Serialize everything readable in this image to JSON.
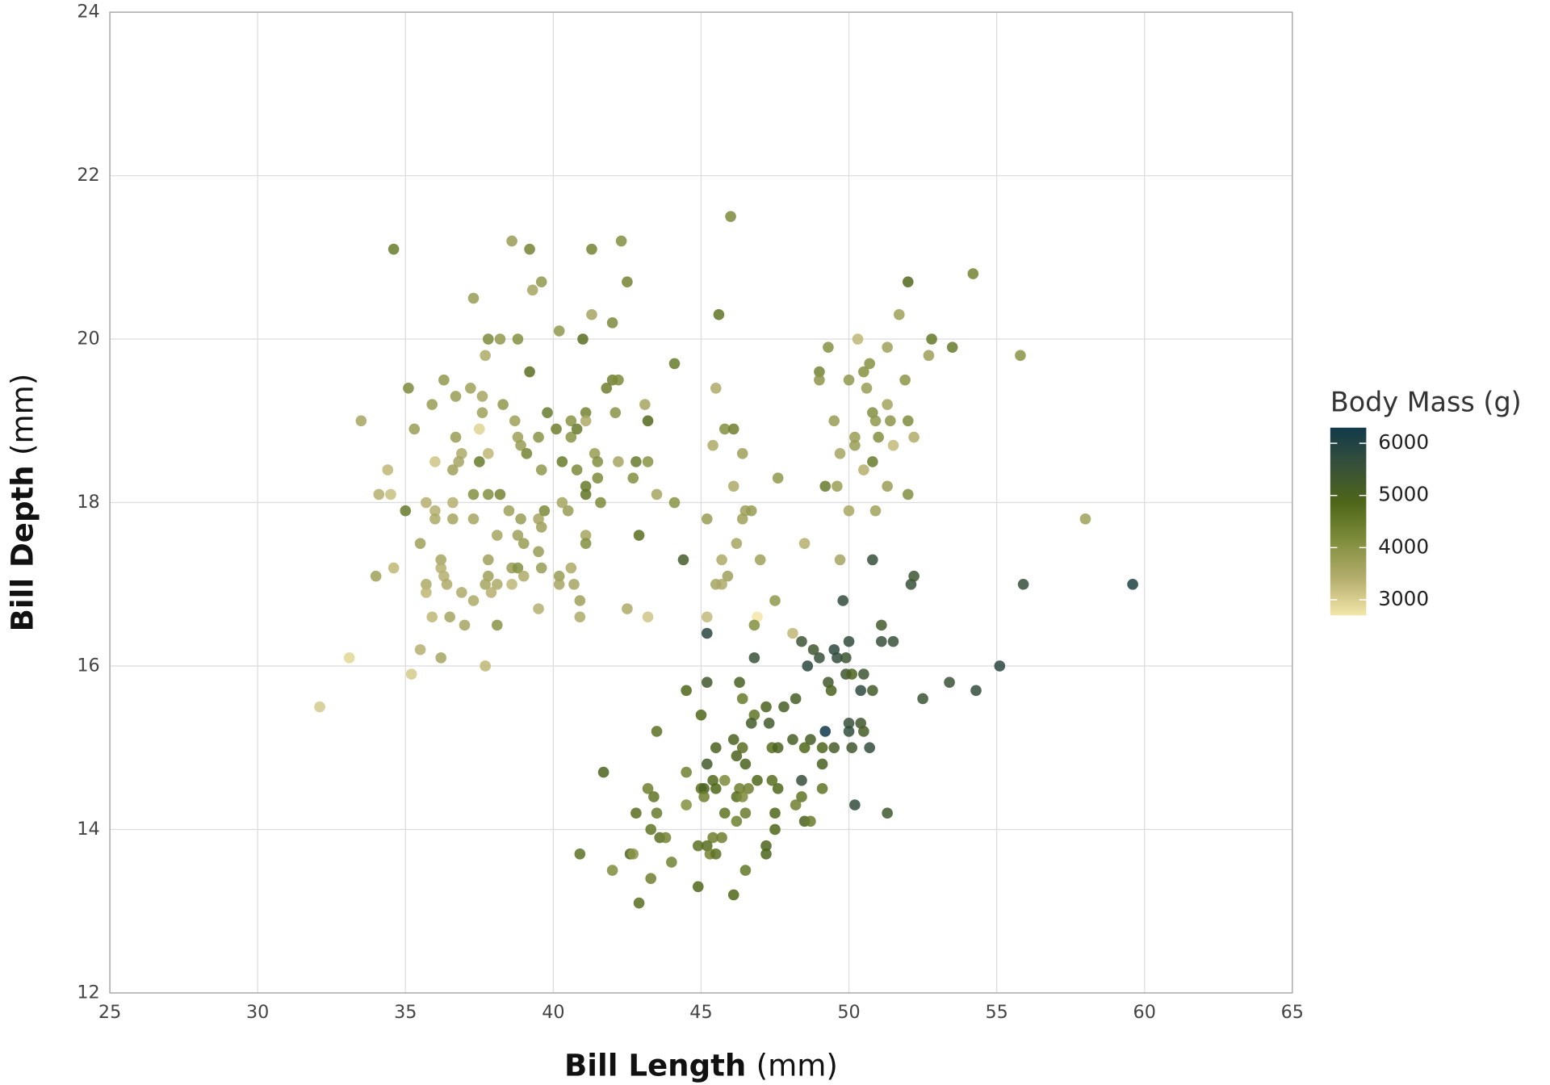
{
  "chart_data": {
    "type": "scatter",
    "xlabel": "Bill Length",
    "xlabel_unit": "(mm)",
    "ylabel": "Bill Depth",
    "ylabel_unit": "(mm)",
    "colorbar_title": "Body Mass (g)",
    "xlim": [
      25,
      65
    ],
    "xticks": [
      25,
      30,
      35,
      40,
      45,
      50,
      55,
      60,
      65
    ],
    "ylim": [
      12,
      24
    ],
    "yticks": [
      12,
      14,
      16,
      18,
      20,
      22,
      24
    ],
    "clim": [
      2700,
      6300
    ],
    "cticks": [
      3000,
      4000,
      5000,
      6000
    ],
    "colors": [
      "#f3e6a8",
      "#b3ad6c",
      "#7f8d3c",
      "#4f6619",
      "#37503a",
      "#113a4a"
    ],
    "grid": true,
    "x": [
      34.6,
      37.3,
      38.6,
      39.2,
      41.3,
      42.3,
      42.5,
      39.6,
      39.3,
      37.8,
      38.2,
      38.8,
      41.0,
      40.2,
      41.3,
      42.0,
      37.7,
      35.1,
      36.3,
      37.2,
      39.2,
      41.8,
      42.0,
      42.2,
      33.5,
      35.9,
      36.7,
      37.6,
      37.6,
      38.3,
      38.7,
      39.8,
      40.6,
      41.1,
      42.1,
      43.1,
      43.2,
      35.3,
      36.7,
      36.9,
      36.8,
      36.0,
      34.4,
      36.6,
      37.5,
      37.8,
      38.8,
      38.9,
      39.1,
      39.5,
      39.6,
      40.1,
      40.6,
      40.8,
      41.1,
      41.4,
      41.5,
      40.8,
      40.3,
      41.1,
      41.5,
      41.1,
      41.6,
      42.2,
      42.8,
      43.2,
      42.7,
      43.5,
      44.1,
      34.1,
      34.5,
      35.0,
      35.7,
      36.0,
      36.0,
      36.6,
      36.6,
      37.3,
      37.3,
      37.8,
      38.2,
      38.5,
      38.9,
      39.5,
      39.7,
      39.6,
      40.3,
      40.5,
      35.5,
      38.1,
      38.8,
      39.0,
      39.5,
      41.1,
      41.1,
      42.9,
      34.0,
      34.6,
      36.2,
      36.2,
      36.3,
      35.7,
      35.7,
      36.4,
      37.8,
      37.8,
      37.7,
      38.1,
      38.6,
      38.8,
      38.6,
      39.0,
      39.6,
      40.2,
      40.2,
      40.6,
      40.7,
      36.9,
      37.3,
      37.9,
      40.9,
      40.9,
      39.5,
      35.9,
      36.5,
      37.0,
      38.1,
      42.5,
      43.2,
      35.5,
      36.2,
      33.1,
      37.7,
      35.2,
      32.1,
      37.5,
      46.0,
      45.6,
      44.1,
      45.5,
      45.4,
      45.8,
      46.1,
      46.4,
      46.1,
      46.5,
      46.7,
      46.4,
      47.6,
      45.2,
      46.2,
      45.7,
      47.0,
      45.9,
      45.5,
      45.7,
      45.2,
      46.9,
      46.8,
      47.5,
      48.5,
      48.1,
      49.7,
      50.0,
      50.3,
      49.3,
      51.3,
      51.7,
      52.0,
      52.8,
      53.5,
      52.7,
      55.8,
      54.2,
      49.0,
      49.0,
      50.0,
      50.5,
      50.7,
      50.6,
      51.9,
      49.5,
      50.8,
      50.9,
      51.4,
      51.3,
      52.0,
      50.2,
      50.2,
      51.0,
      51.5,
      52.2,
      49.7,
      49.2,
      49.6,
      50.5,
      50.8,
      51.3,
      52.0,
      50.9,
      58.0,
      44.4,
      45.2,
      46.8,
      50.8,
      49.8,
      52.1,
      52.2,
      55.9,
      59.6,
      51.1,
      51.1,
      51.5,
      50.0,
      48.4,
      48.8,
      49.5,
      49.6,
      49.0,
      49.9,
      48.6,
      49.9,
      50.5,
      50.1,
      49.3,
      49.4,
      50.4,
      50.8,
      55.1,
      53.4,
      54.3,
      52.5,
      48.2,
      47.8,
      46.3,
      45.2,
      44.5,
      46.4,
      47.2,
      46.8,
      45.0,
      46.7,
      47.3,
      50.0,
      50.4,
      49.2,
      50.0,
      50.5,
      43.5,
      46.1,
      46.4,
      45.5,
      47.4,
      47.6,
      48.1,
      48.7,
      48.5,
      49.1,
      49.5,
      50.1,
      50.7,
      46.2,
      45.2,
      46.5,
      49.1,
      41.7,
      44.5,
      45.4,
      45.8,
      46.9,
      47.4,
      48.4,
      43.2,
      45.0,
      45.1,
      45.5,
      46.3,
      46.6,
      47.6,
      49.1,
      43.4,
      45.1,
      46.2,
      46.4,
      48.4,
      44.5,
      48.2,
      50.2,
      42.8,
      43.5,
      45.8,
      46.5,
      47.5,
      51.3,
      46.2,
      48.5,
      48.7,
      43.3,
      47.5,
      43.6,
      43.8,
      45.4,
      45.7,
      47.2,
      44.9,
      45.2,
      45.3,
      45.5,
      42.6,
      42.7,
      40.9,
      47.2,
      44.0,
      42.0,
      46.5,
      43.3,
      44.9,
      46.1,
      42.9
    ],
    "values": [
      21.1,
      20.5,
      21.2,
      21.1,
      21.1,
      21.2,
      20.7,
      20.7,
      20.6,
      20.0,
      20.0,
      20.0,
      20.0,
      20.1,
      20.3,
      20.2,
      19.8,
      19.4,
      19.5,
      19.4,
      19.6,
      19.4,
      19.5,
      19.5,
      19.0,
      19.2,
      19.3,
      19.3,
      19.1,
      19.2,
      19.0,
      19.1,
      19.0,
      19.1,
      19.1,
      19.2,
      19.0,
      18.9,
      18.8,
      18.6,
      18.5,
      18.5,
      18.4,
      18.4,
      18.5,
      18.6,
      18.8,
      18.7,
      18.6,
      18.8,
      18.4,
      18.9,
      18.8,
      18.9,
      19.0,
      18.6,
      18.5,
      18.4,
      18.5,
      18.2,
      18.3,
      18.1,
      18.0,
      18.5,
      18.5,
      18.5,
      18.3,
      18.1,
      18.0,
      18.1,
      18.1,
      17.9,
      18.0,
      17.9,
      17.8,
      18.0,
      17.8,
      17.8,
      18.1,
      18.1,
      18.1,
      17.9,
      17.8,
      17.8,
      17.9,
      17.7,
      18.0,
      17.9,
      17.5,
      17.6,
      17.6,
      17.5,
      17.4,
      17.6,
      17.5,
      17.6,
      17.1,
      17.2,
      17.3,
      17.2,
      17.1,
      17.0,
      16.9,
      17.0,
      17.3,
      17.1,
      17.0,
      17.0,
      17.2,
      17.2,
      17.0,
      17.1,
      17.2,
      17.1,
      17.0,
      17.2,
      17.0,
      16.9,
      16.8,
      16.9,
      16.8,
      16.6,
      16.7,
      16.6,
      16.6,
      16.5,
      16.5,
      16.7,
      16.6,
      16.2,
      16.1,
      16.1,
      16.0,
      15.9,
      15.5,
      18.9,
      21.5,
      20.3,
      19.7,
      19.4,
      18.7,
      18.9,
      18.9,
      18.6,
      18.2,
      17.9,
      17.9,
      17.8,
      18.3,
      17.8,
      17.5,
      17.3,
      17.3,
      17.1,
      17.0,
      17.0,
      16.6,
      16.6,
      16.5,
      16.8,
      17.5,
      16.4,
      17.3,
      17.9,
      20.0,
      19.9,
      19.9,
      20.3,
      20.7,
      20.0,
      19.9,
      19.8,
      19.8,
      20.8,
      19.6,
      19.5,
      19.5,
      19.6,
      19.7,
      19.4,
      19.5,
      19.0,
      19.1,
      19.0,
      19.0,
      19.2,
      19.0,
      18.8,
      18.7,
      18.8,
      18.7,
      18.8,
      18.6,
      18.2,
      18.2,
      18.4,
      18.5,
      18.2,
      18.1,
      17.9,
      17.8,
      17.3,
      16.4,
      16.1,
      17.3,
      16.8,
      17.0,
      17.1,
      17.0,
      17.0,
      16.5,
      16.3,
      16.3,
      16.3,
      16.3,
      16.2,
      16.2,
      16.1,
      16.1,
      16.1,
      16.0,
      15.9,
      15.9,
      15.9,
      15.8,
      15.7,
      15.7,
      15.7,
      16.0,
      15.8,
      15.7,
      15.6,
      15.6,
      15.5,
      15.8,
      15.8,
      15.7,
      15.6,
      15.5,
      15.4,
      15.4,
      15.3,
      15.3,
      15.3,
      15.3,
      15.2,
      15.2,
      15.2,
      15.2,
      15.1,
      15.0,
      15.0,
      15.0,
      15.0,
      15.1,
      15.1,
      15.0,
      15.0,
      15.0,
      15.0,
      15.0,
      14.9,
      14.8,
      14.8,
      14.8,
      14.7,
      14.7,
      14.6,
      14.6,
      14.6,
      14.6,
      14.6,
      14.5,
      14.5,
      14.5,
      14.5,
      14.5,
      14.5,
      14.5,
      14.5,
      14.4,
      14.4,
      14.4,
      14.4,
      14.4,
      14.3,
      14.3,
      14.3,
      14.2,
      14.2,
      14.2,
      14.2,
      14.2,
      14.2,
      14.1,
      14.1,
      14.1,
      14.0,
      14.0,
      13.9,
      13.9,
      13.9,
      13.9,
      13.8,
      13.8,
      13.8,
      13.7,
      13.7,
      13.7,
      13.7,
      13.7,
      13.7,
      13.6,
      13.5,
      13.5,
      13.4,
      13.3,
      13.2,
      13.1
    ],
    "color_values": [
      4500,
      3800,
      3800,
      4300,
      4300,
      4100,
      4300,
      3900,
      3600,
      4200,
      3900,
      4100,
      4700,
      3900,
      3600,
      4200,
      3500,
      4200,
      3900,
      3700,
      4700,
      4400,
      4400,
      4200,
      3600,
      3800,
      3800,
      3600,
      3700,
      3900,
      3700,
      4500,
      4000,
      4300,
      4000,
      3600,
      4800,
      3800,
      3800,
      3500,
      3600,
      3100,
      3300,
      3700,
      4500,
      3300,
      3700,
      3800,
      4300,
      4000,
      3900,
      4400,
      4000,
      4500,
      3500,
      3800,
      4100,
      4200,
      4500,
      4500,
      4200,
      4600,
      4200,
      3600,
      4500,
      4000,
      4100,
      3600,
      4000,
      3400,
      3200,
      4500,
      3400,
      3400,
      3500,
      3400,
      3600,
      3600,
      4100,
      4100,
      4300,
      3700,
      3800,
      3600,
      4200,
      3700,
      3600,
      3800,
      3700,
      3600,
      3700,
      3800,
      3800,
      3600,
      4100,
      4700,
      3700,
      3300,
      3600,
      3400,
      3400,
      3500,
      3300,
      3500,
      3700,
      3700,
      3600,
      3500,
      3800,
      4100,
      3300,
      3500,
      3800,
      3800,
      3600,
      3500,
      3600,
      3500,
      3500,
      3400,
      3700,
      3500,
      3400,
      3300,
      3600,
      3600,
      4000,
      3500,
      3100,
      3400,
      3600,
      2900,
      3300,
      3050,
      3050,
      2950,
      4200,
      4600,
      4500,
      3500,
      3500,
      4100,
      4400,
      3700,
      3500,
      3700,
      3800,
      3700,
      3900,
      3800,
      3600,
      3500,
      3700,
      3700,
      3600,
      3500,
      3250,
      2700,
      4100,
      3900,
      3400,
      3300,
      3600,
      3550,
      3300,
      4050,
      3700,
      3700,
      4800,
      4550,
      4500,
      3725,
      4000,
      4300,
      4300,
      3950,
      3900,
      4050,
      4050,
      3800,
      3950,
      3800,
      4100,
      3900,
      3950,
      3650,
      4150,
      3775,
      3800,
      4100,
      3250,
      3450,
      3600,
      4500,
      3775,
      3400,
      4500,
      3750,
      4100,
      3675,
      3700,
      5200,
      5850,
      5500,
      5600,
      5700,
      5550,
      5400,
      5600,
      6050,
      5250,
      5550,
      5550,
      5700,
      5400,
      5350,
      5800,
      5700,
      5550,
      5400,
      5800,
      5400,
      5400,
      5000,
      5250,
      5000,
      5750,
      5200,
      5850,
      5500,
      5650,
      5450,
      5100,
      5100,
      5050,
      5300,
      4875,
      4500,
      4975,
      4600,
      4850,
      5200,
      5250,
      5550,
      5350,
      6300,
      5700,
      5150,
      4650,
      5000,
      4700,
      5000,
      4725,
      5000,
      5100,
      5150,
      4850,
      4900,
      5150,
      5350,
      5700,
      4975,
      5200,
      5000,
      5050,
      4950,
      4375,
      4800,
      4200,
      4875,
      4725,
      5600,
      4400,
      4700,
      5000,
      4850,
      4400,
      4400,
      4875,
      4600,
      4600,
      4400,
      4750,
      4200,
      4600,
      4100,
      4400,
      5700,
      4700,
      4500,
      4600,
      4450,
      4875,
      5300,
      4375,
      5000,
      4450,
      4575,
      4875,
      4700,
      4300,
      4400,
      4400,
      4925,
      4650,
      4750,
      4300,
      4650,
      4950,
      3950,
      4650,
      4925,
      4350,
      4150,
      4550,
      4400,
      4850,
      4850,
      4725
    ]
  }
}
